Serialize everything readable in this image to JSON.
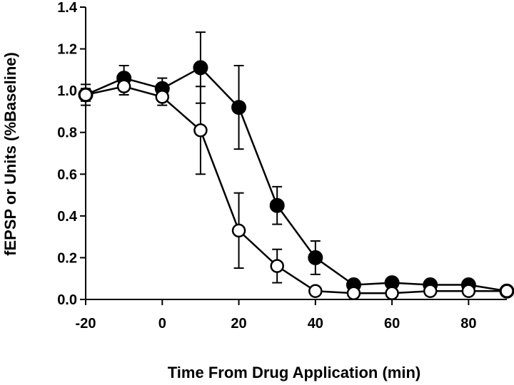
{
  "chart_data": {
    "type": "line",
    "xlabel": "Time From Drug Application (min)",
    "ylabel": "fEPSP or Units (%Baseline)",
    "xlim": [
      -20,
      90
    ],
    "ylim": [
      0,
      1.4
    ],
    "xticks": [
      -20,
      0,
      20,
      40,
      60,
      80
    ],
    "xtick_labels": [
      "-20",
      "0",
      "20",
      "40",
      "60",
      "80"
    ],
    "yticks": [
      0,
      0.2,
      0.4,
      0.6,
      0.8,
      1.0,
      1.2,
      1.4
    ],
    "ytick_labels": [
      "0.0",
      "0.2",
      "0.4",
      "0.6",
      "0.8",
      "1.0",
      "1.2",
      "1.4"
    ],
    "grid": false,
    "legend": "none",
    "series": [
      {
        "marker": "filled-circle",
        "color": "#000000",
        "x": [
          -20,
          -10,
          0,
          10,
          20,
          30,
          40,
          50,
          60,
          70,
          80,
          90
        ],
        "y": [
          0.98,
          1.06,
          1.01,
          1.11,
          0.92,
          0.45,
          0.2,
          0.07,
          0.08,
          0.07,
          0.07,
          0.04
        ],
        "err": [
          0.03,
          0.06,
          0.05,
          0.17,
          0.2,
          0.09,
          0.08,
          0.02,
          0.02,
          0.02,
          0.02,
          0.01
        ]
      },
      {
        "marker": "open-circle",
        "color": "#000000",
        "x": [
          -20,
          -10,
          0,
          10,
          20,
          30,
          40,
          50,
          60,
          70,
          80,
          90
        ],
        "y": [
          0.98,
          1.02,
          0.97,
          0.81,
          0.33,
          0.16,
          0.04,
          0.03,
          0.03,
          0.04,
          0.04,
          0.04
        ],
        "err": [
          0.05,
          0.04,
          0.04,
          0.21,
          0.18,
          0.08,
          0.02,
          0.01,
          0.01,
          0.01,
          0.01,
          0.01
        ]
      }
    ]
  }
}
